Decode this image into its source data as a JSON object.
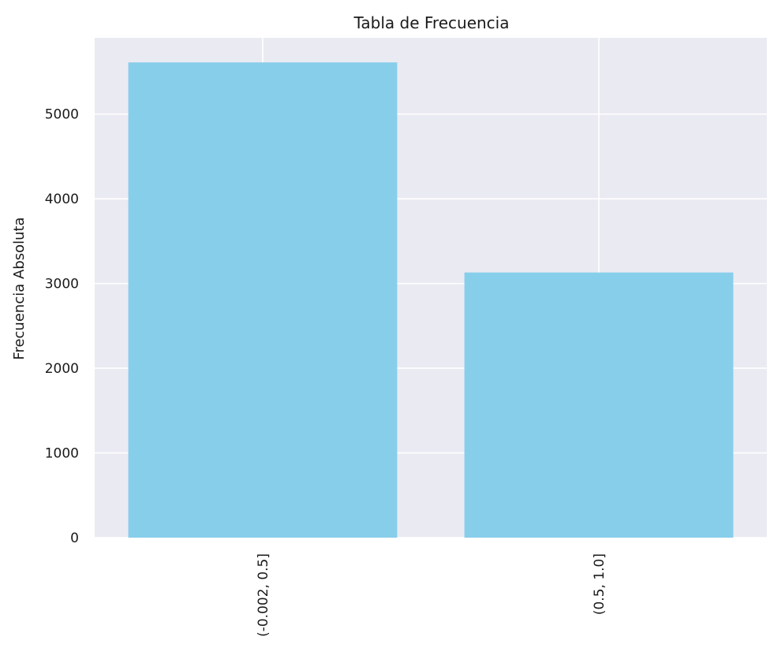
{
  "chart_data": {
    "type": "bar",
    "title": "Tabla de Frecuencia",
    "xlabel": "",
    "ylabel": "Frecuencia Absoluta",
    "categories": [
      "(-0.002, 0.5]",
      "(0.5, 1.0]"
    ],
    "values": [
      5610,
      3130
    ],
    "ylim": [
      0,
      5900
    ],
    "yticks": [
      0,
      1000,
      2000,
      3000,
      4000,
      5000
    ],
    "grid": true,
    "colors": {
      "bar": "#87ceeb",
      "plot_background": "#eaeaf2",
      "grid": "#ffffff"
    }
  }
}
